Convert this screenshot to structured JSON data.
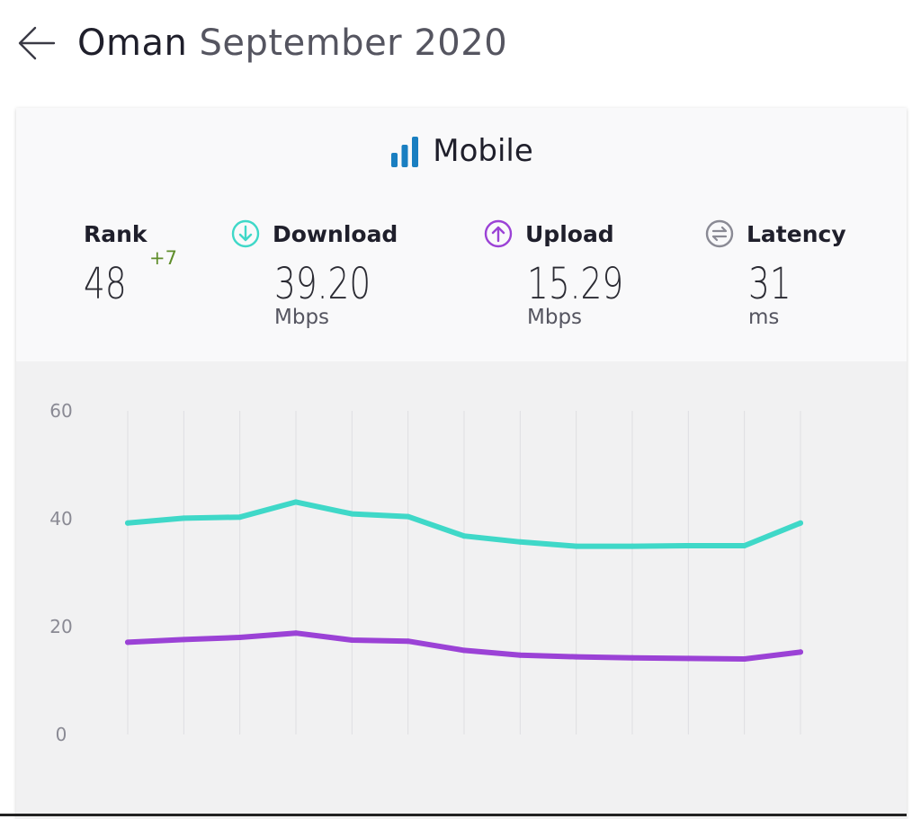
{
  "header": {
    "country": "Oman",
    "period": "September 2020",
    "back_icon": "arrow-left-icon"
  },
  "tech": {
    "label": "Mobile",
    "icon": "signal-bars-icon",
    "icon_color": "#1a7fc1"
  },
  "metrics": {
    "rank": {
      "label": "Rank",
      "value": "48",
      "change": "+7"
    },
    "download": {
      "label": "Download",
      "value": "39.20",
      "unit": "Mbps",
      "icon": "arrow-down-circle-icon",
      "color": "#3fd8c8"
    },
    "upload": {
      "label": "Upload",
      "value": "15.29",
      "unit": "Mbps",
      "icon": "arrow-up-circle-icon",
      "color": "#9b42d6"
    },
    "latency": {
      "label": "Latency",
      "value": "31",
      "unit": "ms",
      "icon": "exchange-circle-icon",
      "color": "#8a8a94"
    }
  },
  "chart_data": {
    "type": "line",
    "title": "",
    "xlabel": "",
    "ylabel": "",
    "ylim": [
      0,
      60
    ],
    "yticks": [
      0,
      20,
      40,
      60
    ],
    "grid": "vertical",
    "x": [
      1,
      2,
      3,
      4,
      5,
      6,
      7,
      8,
      9,
      10,
      11,
      12,
      13
    ],
    "series": [
      {
        "values": [
          39.2,
          40.1,
          40.3,
          43.1,
          40.9,
          40.4,
          36.8,
          35.7,
          34.9,
          34.9,
          35.0,
          35.0,
          39.2
        ],
        "color": "#3fd8c8"
      },
      {
        "values": [
          17.1,
          17.6,
          18.0,
          18.8,
          17.5,
          17.3,
          15.6,
          14.7,
          14.4,
          14.2,
          14.1,
          14.0,
          15.29
        ],
        "color": "#9b42d6"
      }
    ]
  }
}
